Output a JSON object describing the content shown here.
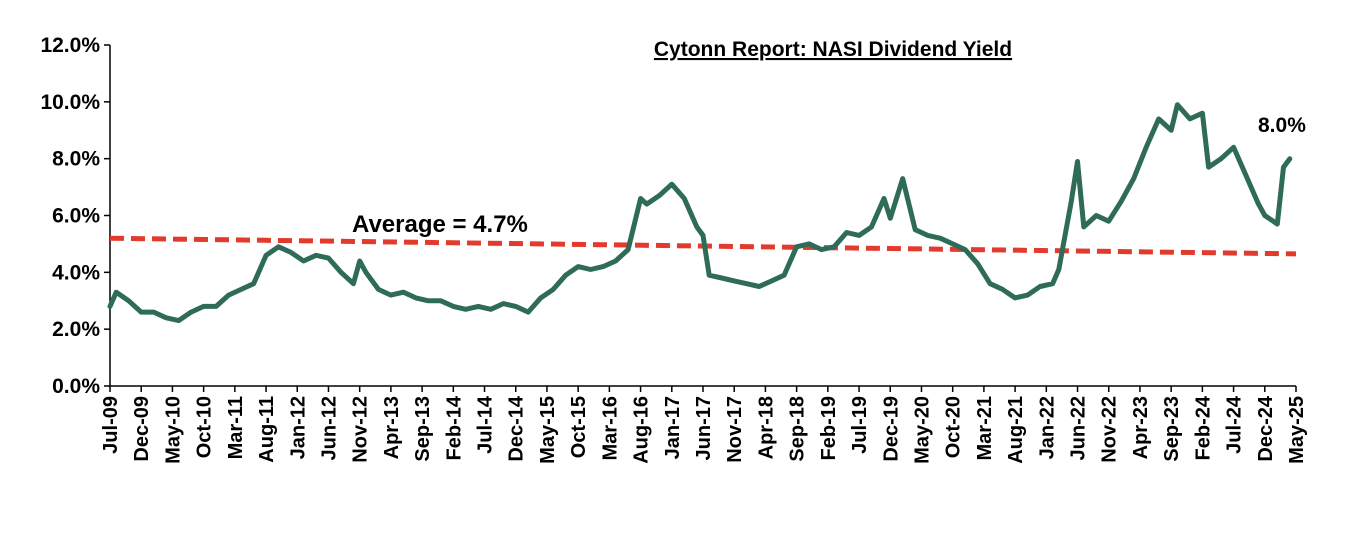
{
  "chart_data": {
    "type": "line",
    "title": "Cytonn Report: NASI Dividend Yield",
    "xlabel": "",
    "ylabel": "",
    "x_range": [
      "Jul-09",
      "May-25"
    ],
    "ylim": [
      0,
      12
    ],
    "y_ticks": [
      "0.0%",
      "2.0%",
      "4.0%",
      "6.0%",
      "8.0%",
      "10.0%",
      "12.0%"
    ],
    "y_tick_values": [
      0,
      2,
      4,
      6,
      8,
      10,
      12
    ],
    "x_ticks": [
      "Jul-09",
      "Dec-09",
      "May-10",
      "Oct-10",
      "Mar-11",
      "Aug-11",
      "Jan-12",
      "Jun-12",
      "Nov-12",
      "Apr-13",
      "Sep-13",
      "Feb-14",
      "Jul-14",
      "Dec-14",
      "May-15",
      "Oct-15",
      "Mar-16",
      "Aug-16",
      "Jan-17",
      "Jun-17",
      "Nov-17",
      "Apr-18",
      "Sep-18",
      "Feb-19",
      "Jul-19",
      "Dec-19",
      "May-20",
      "Oct-20",
      "Mar-21",
      "Aug-21",
      "Jan-22",
      "Jun-22",
      "Nov-22",
      "Apr-23",
      "Sep-23",
      "Feb-24",
      "Jul-24",
      "Dec-24",
      "May-25"
    ],
    "grid": false,
    "legend": "none",
    "series": [
      {
        "color": "#2e6b58",
        "x": [
          "2009-07",
          "2009-08",
          "2009-10",
          "2009-12",
          "2010-02",
          "2010-04",
          "2010-06",
          "2010-08",
          "2010-10",
          "2010-12",
          "2011-02",
          "2011-04",
          "2011-06",
          "2011-08",
          "2011-10",
          "2011-12",
          "2012-02",
          "2012-04",
          "2012-06",
          "2012-08",
          "2012-10",
          "2012-11",
          "2012-12",
          "2013-02",
          "2013-04",
          "2013-06",
          "2013-08",
          "2013-10",
          "2013-12",
          "2014-02",
          "2014-04",
          "2014-06",
          "2014-08",
          "2014-10",
          "2014-12",
          "2015-02",
          "2015-04",
          "2015-06",
          "2015-08",
          "2015-10",
          "2015-12",
          "2016-02",
          "2016-04",
          "2016-06",
          "2016-08",
          "2016-09",
          "2016-11",
          "2017-01",
          "2017-03",
          "2017-05",
          "2017-06",
          "2017-07",
          "2017-09",
          "2017-11",
          "2018-01",
          "2018-03",
          "2018-05",
          "2018-07",
          "2018-09",
          "2018-11",
          "2019-01",
          "2019-03",
          "2019-05",
          "2019-07",
          "2019-09",
          "2019-11",
          "2019-12",
          "2020-02",
          "2020-04",
          "2020-06",
          "2020-08",
          "2020-10",
          "2020-12",
          "2021-02",
          "2021-04",
          "2021-06",
          "2021-08",
          "2021-10",
          "2021-12",
          "2022-02",
          "2022-03",
          "2022-05",
          "2022-06",
          "2022-07",
          "2022-09",
          "2022-11",
          "2023-01",
          "2023-03",
          "2023-05",
          "2023-07",
          "2023-09",
          "2023-10",
          "2023-12",
          "2024-02",
          "2024-03",
          "2024-05",
          "2024-07",
          "2024-09",
          "2024-11",
          "2024-12",
          "2025-02",
          "2025-03",
          "2025-04"
        ],
        "values": [
          2.8,
          3.3,
          3.0,
          2.6,
          2.6,
          2.4,
          2.3,
          2.6,
          2.8,
          2.8,
          3.2,
          3.4,
          3.6,
          4.6,
          4.9,
          4.7,
          4.4,
          4.6,
          4.5,
          4.0,
          3.6,
          4.4,
          4.0,
          3.4,
          3.2,
          3.3,
          3.1,
          3.0,
          3.0,
          2.8,
          2.7,
          2.8,
          2.7,
          2.9,
          2.8,
          2.6,
          3.1,
          3.4,
          3.9,
          4.2,
          4.1,
          4.2,
          4.4,
          4.8,
          6.6,
          6.4,
          6.7,
          7.1,
          6.6,
          5.6,
          5.3,
          3.9,
          3.8,
          3.7,
          3.6,
          3.5,
          3.7,
          3.9,
          4.9,
          5.0,
          4.8,
          4.9,
          5.4,
          5.3,
          5.6,
          6.6,
          5.9,
          7.3,
          5.5,
          5.3,
          5.2,
          5.0,
          4.8,
          4.3,
          3.6,
          3.4,
          3.1,
          3.2,
          3.5,
          3.6,
          4.1,
          6.5,
          7.9,
          5.6,
          6.0,
          5.8,
          6.5,
          7.3,
          8.4,
          9.4,
          9.0,
          9.9,
          9.4,
          9.6,
          7.7,
          8.0,
          8.4,
          7.4,
          6.4,
          6.0,
          5.7,
          7.7,
          8.0
        ]
      }
    ],
    "average_line": {
      "label": "Average = 4.7%",
      "color": "#e23b2e",
      "start": 5.2,
      "end": 4.65
    },
    "end_label": "8.0%"
  }
}
